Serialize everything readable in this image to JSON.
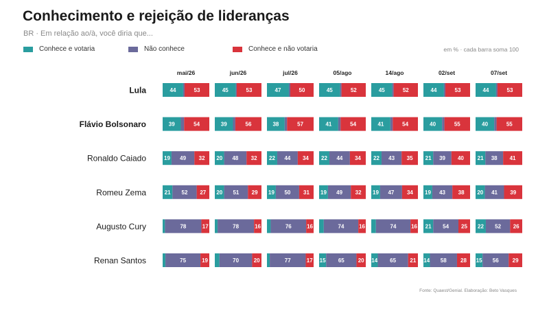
{
  "title": "Conhecimento e rejeição de lideranças",
  "subtitle": "BR · Em relação ao/à, você diria que...",
  "legend": [
    {
      "label": "Conhece e votaria",
      "color": "#2a9d9f"
    },
    {
      "label": "Não conhece",
      "color": "#6b6a9b"
    },
    {
      "label": "Conhece e não votaria",
      "color": "#d9343c"
    }
  ],
  "note": "em % · cada barra soma 100",
  "source": "Fonte: Quaest/Genial. Elaboração: Beto Vasques",
  "chart_data": {
    "type": "bar",
    "stacked": true,
    "orientation": "horizontal",
    "periods": [
      "mai/26",
      "jun/26",
      "jul/26",
      "05/ago",
      "14/ago",
      "02/set",
      "07/set"
    ],
    "segment_order": [
      "Conhece e votaria",
      "Não conhece",
      "Conhece e não votaria"
    ],
    "segment_colors": [
      "#2a9d9f",
      "#6b6a9b",
      "#d9343c"
    ],
    "rows": [
      {
        "name": "Lula",
        "bold": true,
        "values": [
          [
            44,
            3,
            53
          ],
          [
            45,
            2,
            53
          ],
          [
            47,
            3,
            50
          ],
          [
            45,
            3,
            52
          ],
          [
            45,
            3,
            52
          ],
          [
            44,
            3,
            53
          ],
          [
            44,
            3,
            53
          ]
        ]
      },
      {
        "name": "Flávio Bolsonaro",
        "bold": true,
        "values": [
          [
            39,
            7,
            54
          ],
          [
            39,
            5,
            56
          ],
          [
            38,
            5,
            57
          ],
          [
            41,
            5,
            54
          ],
          [
            41,
            5,
            54
          ],
          [
            40,
            5,
            55
          ],
          [
            40,
            5,
            55
          ]
        ]
      },
      {
        "name": "Ronaldo Caiado",
        "bold": false,
        "values": [
          [
            19,
            49,
            32
          ],
          [
            20,
            48,
            32
          ],
          [
            22,
            44,
            34
          ],
          [
            22,
            44,
            34
          ],
          [
            22,
            43,
            35
          ],
          [
            21,
            39,
            40
          ],
          [
            21,
            38,
            41
          ]
        ]
      },
      {
        "name": "Romeu Zema",
        "bold": false,
        "values": [
          [
            21,
            52,
            27
          ],
          [
            20,
            51,
            29
          ],
          [
            19,
            50,
            31
          ],
          [
            19,
            49,
            32
          ],
          [
            19,
            47,
            34
          ],
          [
            19,
            43,
            38
          ],
          [
            20,
            41,
            39
          ]
        ]
      },
      {
        "name": "Augusto Cury",
        "bold": false,
        "values": [
          [
            5,
            78,
            17
          ],
          [
            6,
            78,
            16
          ],
          [
            8,
            76,
            16
          ],
          [
            10,
            74,
            16
          ],
          [
            10,
            74,
            16
          ],
          [
            21,
            54,
            25
          ],
          [
            22,
            52,
            26
          ]
        ]
      },
      {
        "name": "Renan Santos",
        "bold": false,
        "values": [
          [
            6,
            75,
            19
          ],
          [
            10,
            70,
            20
          ],
          [
            6,
            77,
            17
          ],
          [
            15,
            65,
            20
          ],
          [
            14,
            65,
            21
          ],
          [
            14,
            58,
            28
          ],
          [
            15,
            56,
            29
          ]
        ]
      }
    ]
  }
}
